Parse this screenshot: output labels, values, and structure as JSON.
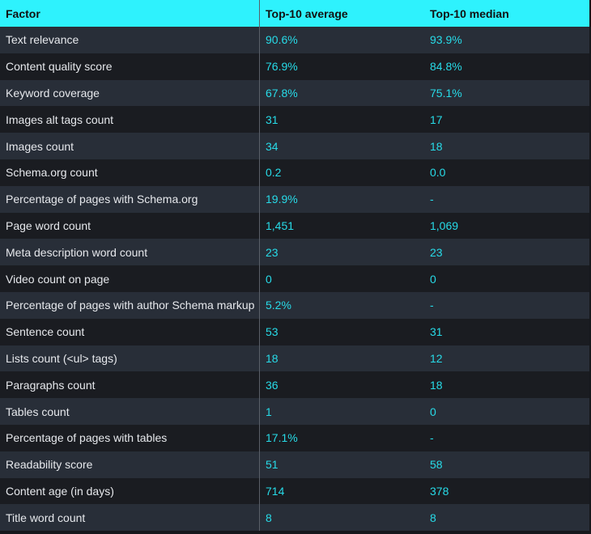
{
  "table": {
    "headers": [
      "Factor",
      "Top-10 average",
      "Top-10 median"
    ],
    "rows": [
      [
        "Text relevance",
        "90.6%",
        "93.9%"
      ],
      [
        "Content quality score",
        "76.9%",
        "84.8%"
      ],
      [
        "Keyword coverage",
        "67.8%",
        "75.1%"
      ],
      [
        "Images alt tags count",
        "31",
        "17"
      ],
      [
        "Images count",
        "34",
        "18"
      ],
      [
        "Schema.org count",
        "0.2",
        "0.0"
      ],
      [
        "Percentage of pages with Schema.org",
        "19.9%",
        "-"
      ],
      [
        "Page word count",
        "1,451",
        "1,069"
      ],
      [
        "Meta description word count",
        "23",
        "23"
      ],
      [
        "Video count on page",
        "0",
        "0"
      ],
      [
        "Percentage of pages with author Schema markup",
        "5.2%",
        "-"
      ],
      [
        "Sentence count",
        "53",
        "31"
      ],
      [
        "Lists count (<ul> tags)",
        "18",
        "12"
      ],
      [
        "Paragraphs count",
        "36",
        "18"
      ],
      [
        "Tables count",
        "1",
        "0"
      ],
      [
        "Percentage of pages with tables",
        "17.1%",
        "-"
      ],
      [
        "Readability score",
        "51",
        "58"
      ],
      [
        "Content age (in days)",
        "714",
        "378"
      ],
      [
        "Title word count",
        "8",
        "8"
      ]
    ]
  },
  "colors": {
    "header": "#2ef2fd",
    "value": "#27dbe8"
  }
}
